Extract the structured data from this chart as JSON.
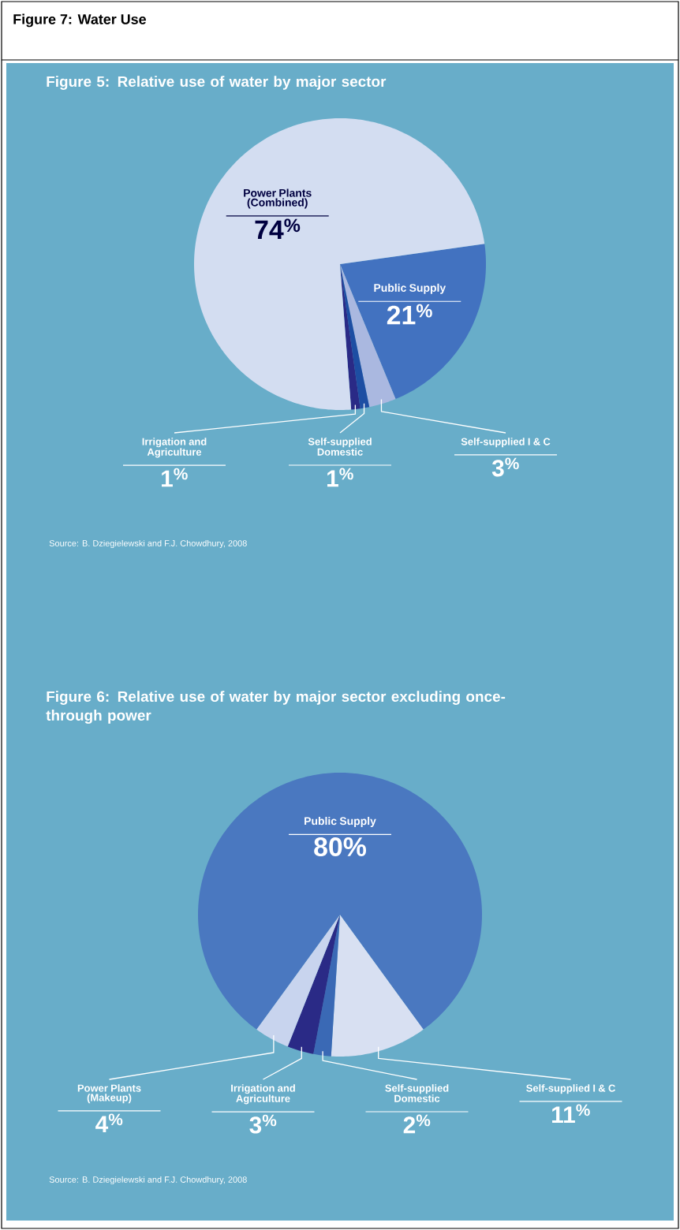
{
  "chart_data": [
    {
      "type": "pie",
      "title": "Figure 5: Relative use of water by major sector",
      "categories": [
        "Public Supply",
        "Self-supplied I & C",
        "Self-supplied Domestic",
        "Irrigation and Agriculture",
        "Power Plants (Combined)"
      ],
      "values": [
        21,
        3,
        1,
        1,
        74
      ],
      "colors": [
        "#4272c0",
        "#aab8e0",
        "#1d4ea3",
        "#2a2a86",
        "#d3ddf1"
      ],
      "value_labels": [
        "21$^{%}$",
        "3$^{%}$",
        "1$^{%}$",
        "1$^{%}$",
        "74$^{%}$"
      ],
      "annotations": [
        "Figure 7: Water Use",
        "Source: B. Dziegielewski and F.J. Chowdhury, 2008"
      ]
    },
    {
      "type": "pie",
      "title": "Figure 6: Relative use of water by major sector excluding once-through power",
      "categories": [
        "Self-supplied I & C",
        "Self-supplied Domestic",
        "Irrigation and Agriculture",
        "Power Plants (Makeup)",
        "Public Supply"
      ],
      "values": [
        11,
        2,
        3,
        4,
        80
      ],
      "colors": [
        "#d8e0f2",
        "#3a69b5",
        "#2a2a86",
        "#c8d4ee",
        "#4a78c0"
      ],
      "value_labels": [
        "11$^{%}$",
        "2$^{%}$",
        "3$^{%}$",
        "4$^{%}$",
        "80%"
      ],
      "annotations": [
        "Source: B. Dziegielewski and F.J. Chowdhury, 2008"
      ]
    }
  ]
}
